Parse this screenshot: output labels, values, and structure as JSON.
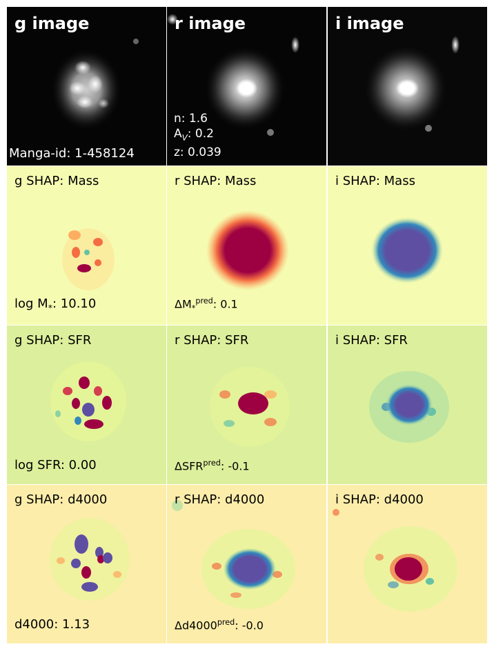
{
  "image_row": {
    "g_title": "g image",
    "r_title": "r image",
    "i_title": "i image",
    "manga_id": "Manga-id: 1-458124",
    "n": "n: 1.6",
    "av_prefix": "A",
    "av_sub": "V",
    "av_value": ": 0.2",
    "z": "z: 0.039"
  },
  "mass_row": {
    "g_title": "g SHAP: Mass",
    "r_title": "r SHAP: Mass",
    "i_title": "i SHAP: Mass",
    "value_prefix": "log M",
    "value_sub": "*",
    "value_suffix": ": 10.10",
    "delta_prefix": "ΔM",
    "delta_sub": "*",
    "delta_sup": "pred",
    "delta_value": ": 0.1"
  },
  "sfr_row": {
    "g_title": "g SHAP: SFR",
    "r_title": "r SHAP: SFR",
    "i_title": "i SHAP: SFR",
    "value": "log SFR: 0.00",
    "delta_prefix": "ΔSFR",
    "delta_sup": "pred",
    "delta_value": ": -0.1"
  },
  "d4000_row": {
    "g_title": "g SHAP: d4000",
    "r_title": "r SHAP: d4000",
    "i_title": "i SHAP: d4000",
    "value": "d4000: 1.13",
    "delta_prefix": "Δd4000",
    "delta_sup": "pred",
    "delta_value": ": -0.0"
  },
  "colors": {
    "mass_bg": "#f6fbb2",
    "sfr_bg": "#dcef9c",
    "d4000_bg": "#fcedaa",
    "positive": "#9e0142",
    "negative": "#5e4fa2"
  }
}
